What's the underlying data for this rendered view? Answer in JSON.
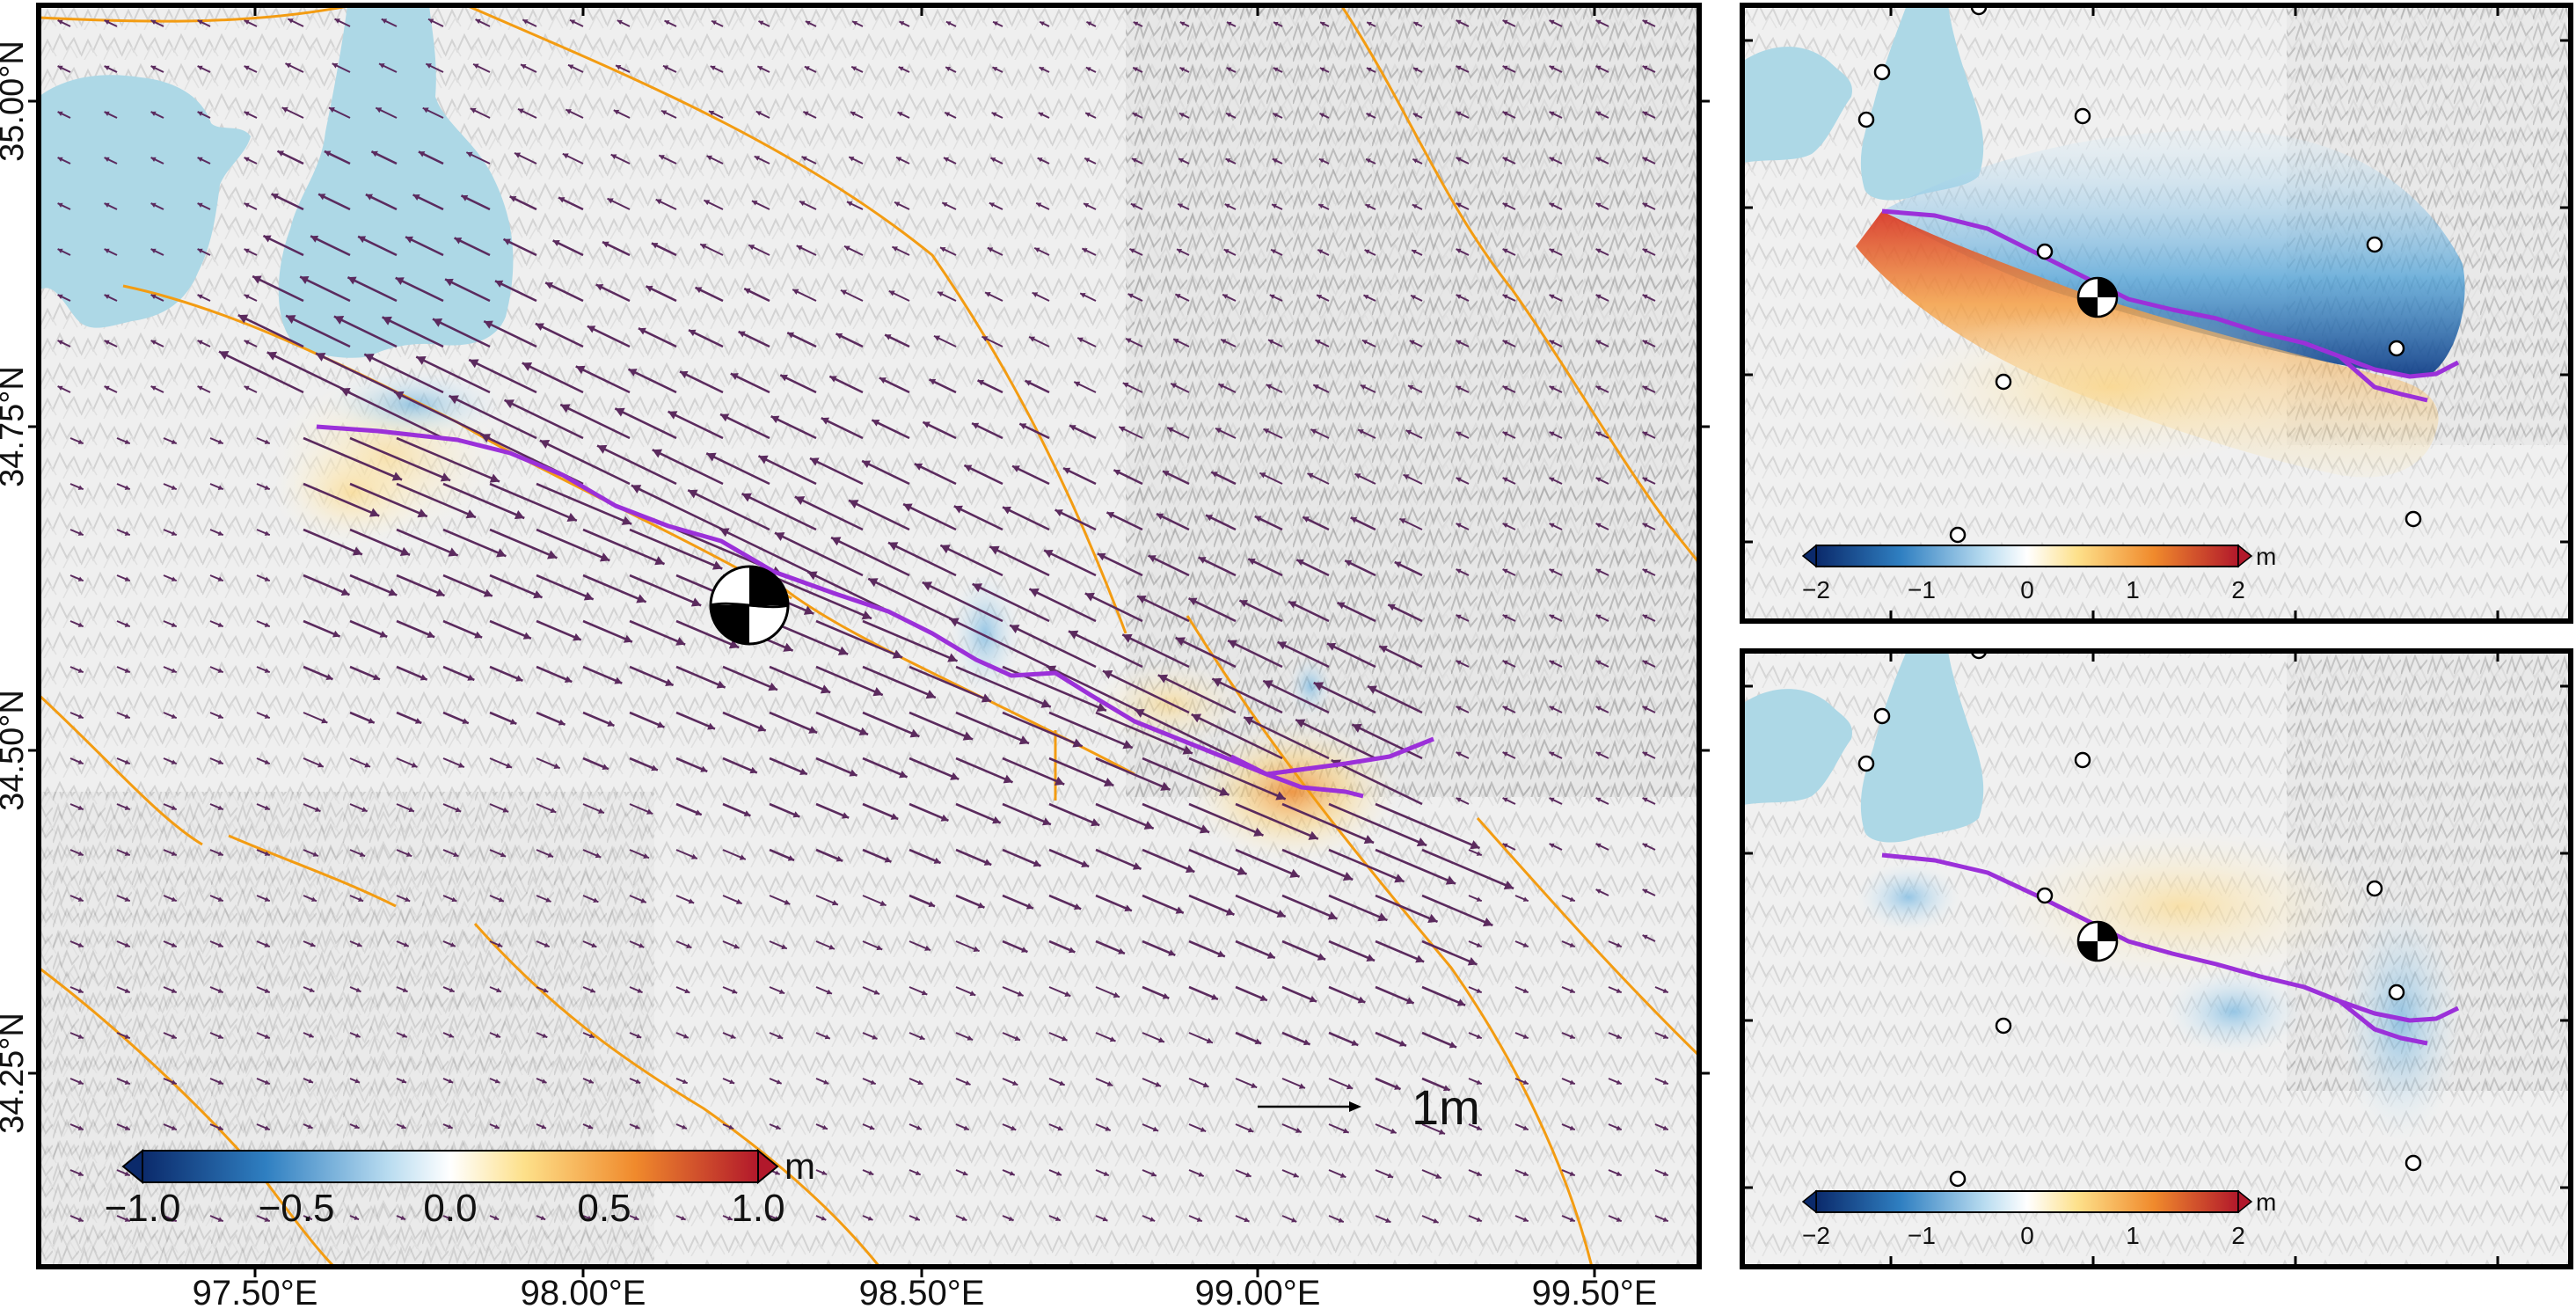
{
  "main_map": {
    "x_ticks": [
      "97.50°E",
      "98.00°E",
      "98.50°E",
      "99.00°E",
      "99.50°E"
    ],
    "y_ticks": [
      "35.00°N",
      "34.75°N",
      "34.50°N",
      "34.25°N"
    ],
    "scale_arrow_label": "1m",
    "colorbar": {
      "unit": "m",
      "ticks": [
        "−1.0",
        "−0.5",
        "0.0",
        "0.5",
        "1.0"
      ],
      "range": [
        -1.0,
        1.0
      ]
    },
    "icons": {
      "focal_mechanism": "beachball-icon",
      "vector_field": "displacement-arrow-icon"
    },
    "colors": {
      "lake": "#add8e6",
      "fault": "#f39c12",
      "rupture": "#9b30d9",
      "arrow": "#5b2a5e"
    }
  },
  "top_inset": {
    "colorbar": {
      "unit": "m",
      "ticks": [
        "−2",
        "−1",
        "0",
        "1",
        "2"
      ],
      "range": [
        -2,
        2
      ]
    }
  },
  "bottom_inset": {
    "colorbar": {
      "unit": "m",
      "ticks": [
        "−2",
        "−1",
        "0",
        "1",
        "2"
      ],
      "range": [
        -2,
        2
      ]
    }
  }
}
